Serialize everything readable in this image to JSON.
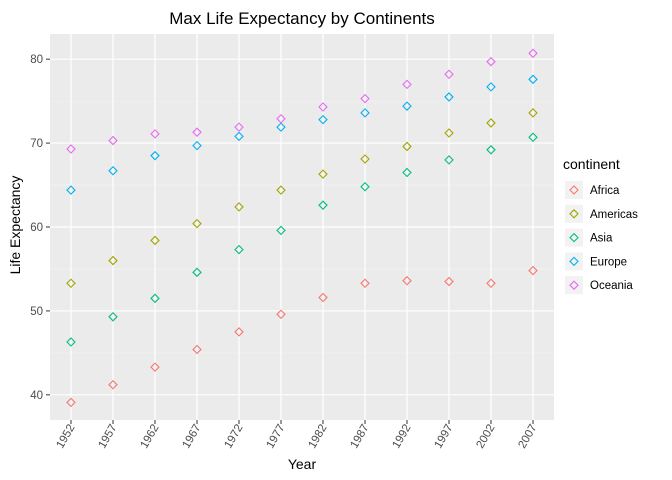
{
  "chart_data": {
    "type": "scatter",
    "title": "Max Life Expectancy by Continents",
    "xlabel": "Year",
    "ylabel": "Life Expectancy",
    "x": [
      "1952",
      "1957",
      "1962",
      "1967",
      "1972",
      "1977",
      "1982",
      "1987",
      "1992",
      "1997",
      "2002",
      "2007"
    ],
    "ylim": [
      37,
      83
    ],
    "yticks": [
      40,
      50,
      60,
      70,
      80
    ],
    "grid": true,
    "marker": "diamond-open",
    "legend": {
      "title": "continent",
      "placement": "right"
    },
    "series": [
      {
        "name": "Africa",
        "color": "#F8766D",
        "values": [
          39.1,
          41.2,
          43.3,
          45.4,
          47.5,
          49.6,
          51.6,
          53.3,
          53.6,
          53.5,
          53.3,
          54.8
        ]
      },
      {
        "name": "Americas",
        "color": "#A3A500",
        "values": [
          53.3,
          56.0,
          58.4,
          60.4,
          62.4,
          64.4,
          66.3,
          68.1,
          69.6,
          71.2,
          72.4,
          73.6
        ]
      },
      {
        "name": "Asia",
        "color": "#00BF7D",
        "values": [
          46.3,
          49.3,
          51.5,
          54.6,
          57.3,
          59.6,
          62.6,
          64.8,
          66.5,
          68.0,
          69.2,
          70.7
        ]
      },
      {
        "name": "Europe",
        "color": "#00B0F6",
        "values": [
          64.4,
          66.7,
          68.5,
          69.7,
          70.8,
          71.9,
          72.8,
          73.6,
          74.4,
          75.5,
          76.7,
          77.6
        ]
      },
      {
        "name": "Oceania",
        "color": "#E76BF3",
        "values": [
          69.3,
          70.3,
          71.1,
          71.3,
          71.9,
          72.9,
          74.3,
          75.3,
          77.0,
          78.2,
          79.7,
          80.7
        ]
      }
    ]
  }
}
